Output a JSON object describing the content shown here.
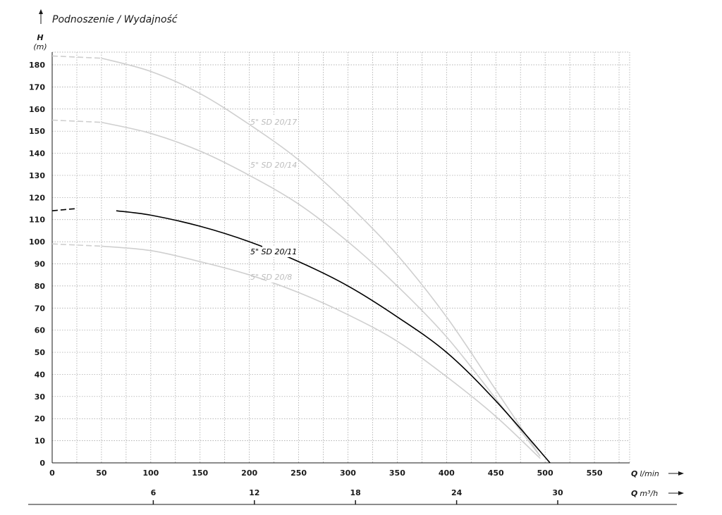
{
  "title": "Podnoszenie / Wydajność",
  "colors": {
    "highlight": "#000000",
    "muted": "#cfcfcf",
    "muted_label": "#bdbdbd",
    "grid": "#9a9a9a"
  },
  "chart_data": {
    "type": "line",
    "title": "Podnoszenie / Wydajność",
    "ylabel": "H",
    "yunit": "(m)",
    "xlabel": "Q",
    "xunit": "l/min",
    "x2label": "Q",
    "x2unit": "m³/h",
    "xlim": [
      0,
      585
    ],
    "ylim": [
      0,
      185
    ],
    "xticks": [
      0,
      50,
      100,
      150,
      200,
      250,
      300,
      350,
      400,
      450,
      500,
      550
    ],
    "yticks": [
      0,
      10,
      20,
      30,
      40,
      50,
      60,
      70,
      80,
      90,
      100,
      110,
      120,
      130,
      140,
      150,
      160,
      170,
      180
    ],
    "x2ticks": [
      6,
      12,
      18,
      24,
      30
    ],
    "grid": true,
    "series": [
      {
        "name": "5\" SD 20/17",
        "highlight": false,
        "x": [
          0,
          50,
          100,
          150,
          200,
          250,
          300,
          350,
          400,
          450,
          495
        ],
        "y": [
          184,
          183,
          177,
          167,
          153,
          137,
          117,
          94,
          66,
          33,
          3
        ]
      },
      {
        "name": "5\" SD 20/14",
        "highlight": false,
        "x": [
          0,
          50,
          100,
          150,
          200,
          250,
          300,
          350,
          400,
          450,
          495
        ],
        "y": [
          155,
          154,
          149,
          141,
          130,
          117,
          100,
          80,
          57,
          29,
          3
        ]
      },
      {
        "name": "5\" SD 20/11",
        "highlight": true,
        "x": [
          0,
          25,
          65,
          100,
          150,
          200,
          250,
          300,
          350,
          400,
          450,
          505
        ],
        "y": [
          114,
          115,
          114,
          112,
          107,
          100,
          91,
          80,
          66,
          50,
          28,
          0
        ]
      },
      {
        "name": "5\" SD 20/8",
        "highlight": false,
        "x": [
          0,
          50,
          100,
          150,
          200,
          250,
          300,
          350,
          400,
          450,
          495
        ],
        "y": [
          99,
          98,
          96,
          91,
          85,
          77,
          67,
          55,
          39,
          21,
          2
        ]
      }
    ]
  }
}
